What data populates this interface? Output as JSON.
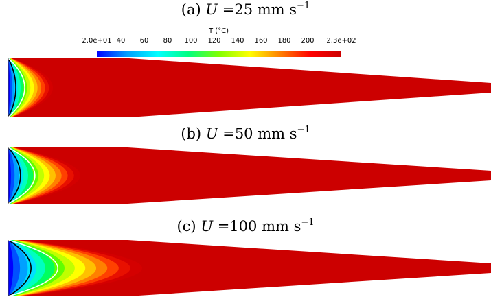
{
  "colorbar": {
    "title": "T (°C)",
    "ticks": [
      "2.0e+01",
      "40",
      "60",
      "80",
      "100",
      "120",
      "140",
      "160",
      "180",
      "200",
      "2.3e+02"
    ],
    "colors": [
      "#0000ff",
      "#00a0ff",
      "#00ffff",
      "#00ff80",
      "#80ff00",
      "#ffff00",
      "#ff8000",
      "#ff0000",
      "#cc0000"
    ],
    "range": [
      20,
      230
    ]
  },
  "panels": [
    {
      "label": "(a)",
      "symbol": "U",
      "value": "=25",
      "unit": "mm s",
      "exponent": "−1",
      "velocity_mm_s": 25
    },
    {
      "label": "(b)",
      "symbol": "U",
      "value": "=50",
      "unit": "mm s",
      "exponent": "−1",
      "velocity_mm_s": 50
    },
    {
      "label": "(c)",
      "symbol": "U",
      "value": "=100",
      "unit": "mm s",
      "exponent": "−1",
      "velocity_mm_s": 100
    }
  ]
}
